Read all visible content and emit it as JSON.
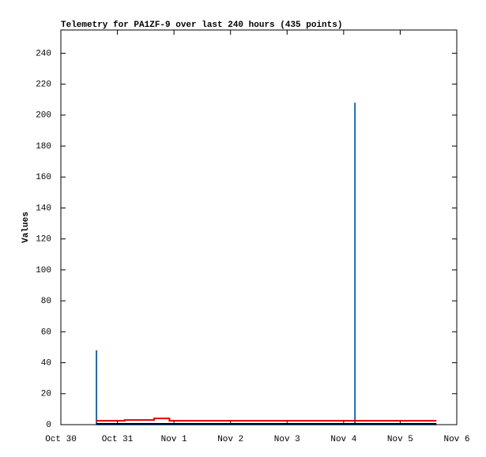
{
  "chart_data": {
    "type": "line",
    "title": "Telemetry for PA1ZF-9 over last 240 hours (435 points)",
    "y_label": "Values",
    "xlim": [
      0,
      7
    ],
    "xticks": [
      {
        "value": 0,
        "label": "Oct 30"
      },
      {
        "value": 1,
        "label": "Oct 31"
      },
      {
        "value": 2,
        "label": "Nov 1"
      },
      {
        "value": 3,
        "label": "Nov 2"
      },
      {
        "value": 4,
        "label": "Nov 3"
      },
      {
        "value": 5,
        "label": "Nov 4"
      },
      {
        "value": 6,
        "label": "Nov 5"
      },
      {
        "value": 7,
        "label": "Nov 6"
      }
    ],
    "ylim": [
      0,
      255
    ],
    "yticks": [
      0,
      20,
      40,
      60,
      80,
      100,
      120,
      140,
      160,
      180,
      200,
      220,
      240
    ],
    "series": [
      {
        "color": "#1466c8",
        "x": [
          0.63,
          0.63,
          5.2,
          5.2,
          5.2,
          6.64
        ],
        "values": [
          48,
          0,
          0,
          208,
          0,
          0
        ]
      },
      {
        "color": "#000000",
        "x": [
          0.63,
          6.64
        ],
        "values": [
          0.5,
          0.5
        ]
      },
      {
        "color": "#e00000",
        "x": [
          0.63,
          1.13,
          1.13,
          1.65,
          1.65,
          1.92,
          1.92,
          6.64
        ],
        "values": [
          2.5,
          2.5,
          3,
          3,
          4,
          4,
          2.5,
          2.5
        ]
      }
    ]
  }
}
